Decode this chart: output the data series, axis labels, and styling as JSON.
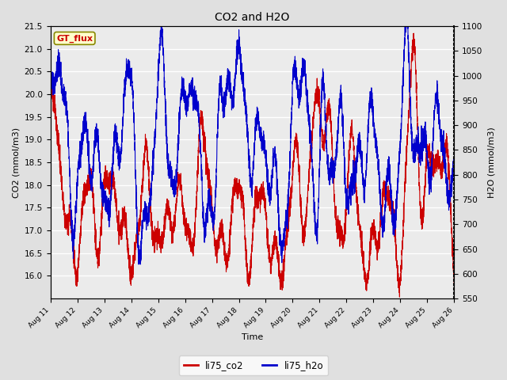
{
  "title": "CO2 and H2O",
  "xlabel": "Time",
  "ylabel_left": "CO2 (mmol/m3)",
  "ylabel_right": "H2O (mmol/m3)",
  "ylim_left": [
    15.5,
    21.5
  ],
  "ylim_right": [
    550,
    1100
  ],
  "yticks_left": [
    16.0,
    16.5,
    17.0,
    17.5,
    18.0,
    18.5,
    19.0,
    19.5,
    20.0,
    20.5,
    21.0,
    21.5
  ],
  "yticks_right": [
    550,
    600,
    650,
    700,
    750,
    800,
    850,
    900,
    950,
    1000,
    1050,
    1100
  ],
  "xtick_labels": [
    "Aug 11",
    "Aug 12",
    "Aug 13",
    "Aug 14",
    "Aug 15",
    "Aug 16",
    "Aug 17",
    "Aug 18",
    "Aug 19",
    "Aug 20",
    "Aug 21",
    "Aug 22",
    "Aug 23",
    "Aug 24",
    "Aug 25",
    "Aug 26"
  ],
  "color_co2": "#cc0000",
  "color_h2o": "#0000cc",
  "label_co2": "li75_co2",
  "label_h2o": "li75_h2o",
  "legend_label": "GT_flux",
  "background_color": "#e0e0e0",
  "plot_bg_color": "#ebebeb",
  "grid_color": "#ffffff",
  "n_points": 4320
}
